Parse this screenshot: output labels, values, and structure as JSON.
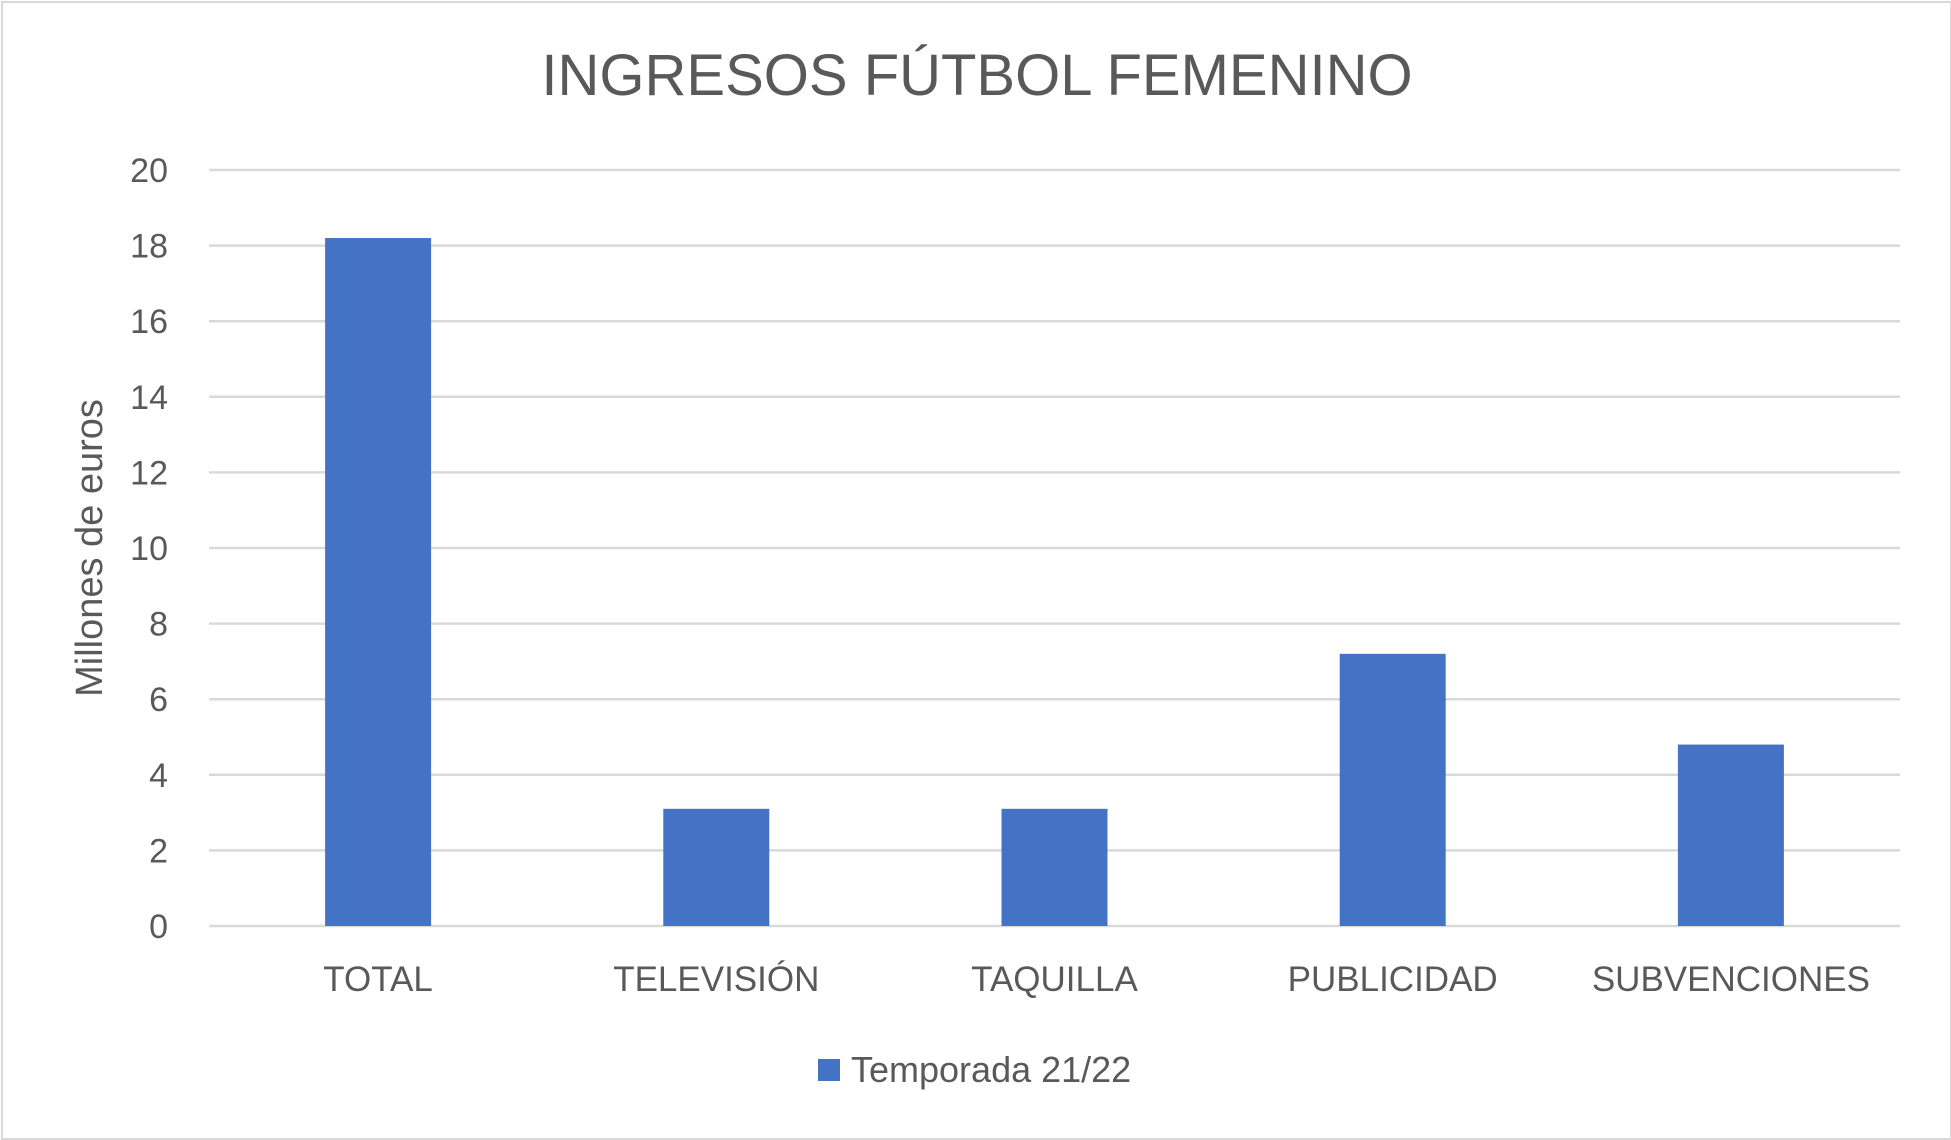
{
  "chart_data": {
    "type": "bar",
    "title": "INGRESOS FÚTBOL FEMENINO",
    "xlabel": "",
    "ylabel": "Millones de euros",
    "ylim": [
      0,
      20
    ],
    "yticks": [
      "0",
      "2",
      "4",
      "6",
      "8",
      "10",
      "12",
      "14",
      "16",
      "18",
      "20"
    ],
    "categories": [
      "TOTAL",
      "TELEVISIÓN",
      "TAQUILLA",
      "PUBLICIDAD",
      "SUBVENCIONES"
    ],
    "series": [
      {
        "name": "Temporada 21/22",
        "values": [
          18.2,
          3.1,
          3.1,
          7.2,
          4.8
        ],
        "color": "#4472c4"
      }
    ],
    "grid": true,
    "gridColor": "#d9d9d9",
    "legend": "bottom"
  }
}
